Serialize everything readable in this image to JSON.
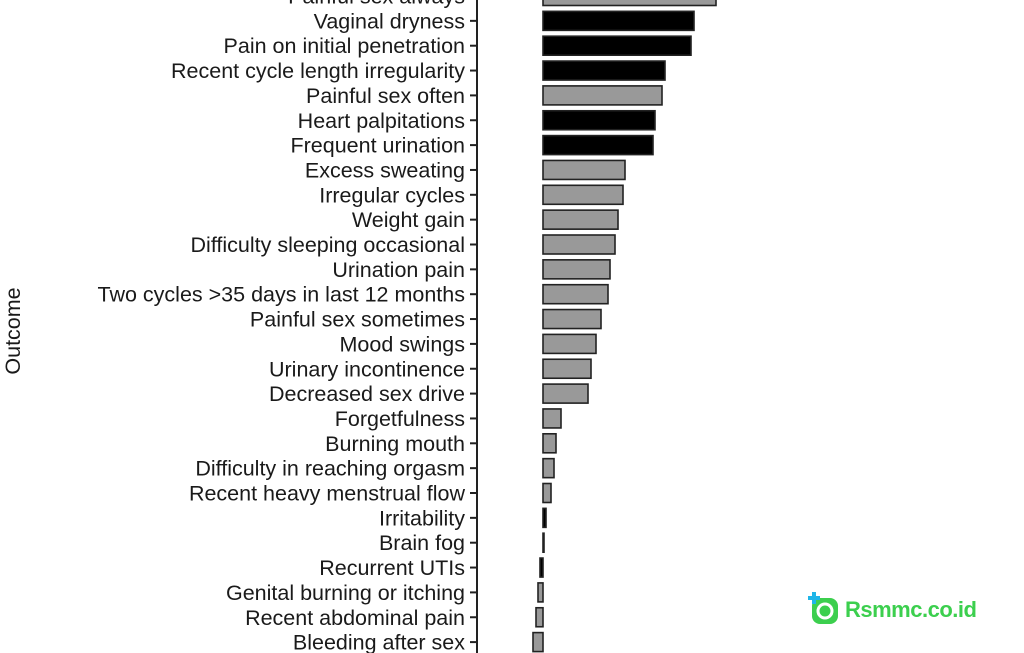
{
  "chart_data": {
    "type": "bar",
    "orientation": "horizontal",
    "ylabel": "Outcome",
    "xlabel": "",
    "grid": false,
    "legend": "none",
    "colors": {
      "black": "#000000",
      "gray": "#999999",
      "outline": "#222222"
    },
    "categories": [
      "Painful sex always",
      "Vaginal dryness",
      "Pain on initial penetration",
      "Recent cycle length irregularity",
      "Painful sex often",
      "Heart palpitations",
      "Frequent urination",
      "Excess sweating",
      "Irregular cycles",
      "Weight gain",
      "Difficulty sleeping occasional",
      "Urination pain",
      "Two cycles >35 days in last 12 months",
      "Painful sex sometimes",
      "Mood swings",
      "Urinary incontinence",
      "Decreased sex drive",
      "Forgetfulness",
      "Burning mouth",
      "Difficulty in reaching orgasm",
      "Recent heavy menstrual flow",
      "Irritability",
      "Brain fog",
      "Recurrent UTIs",
      "Genital burning or itching",
      "Recent abdominal pain",
      "Bleeding after sex"
    ],
    "values": [
      173,
      151,
      148,
      122,
      119,
      112,
      110,
      82,
      80,
      75,
      72,
      67,
      65,
      58,
      53,
      48,
      45,
      18,
      13,
      11,
      8,
      3,
      1,
      -3,
      -5,
      -7,
      -10
    ],
    "fill": [
      "gray",
      "black",
      "black",
      "black",
      "gray",
      "black",
      "black",
      "gray",
      "gray",
      "gray",
      "gray",
      "gray",
      "gray",
      "gray",
      "gray",
      "gray",
      "gray",
      "gray",
      "gray",
      "gray",
      "gray",
      "black",
      "gray",
      "black",
      "gray",
      "gray",
      "gray"
    ]
  },
  "watermark": {
    "text": "Rsmmc.co.id"
  }
}
